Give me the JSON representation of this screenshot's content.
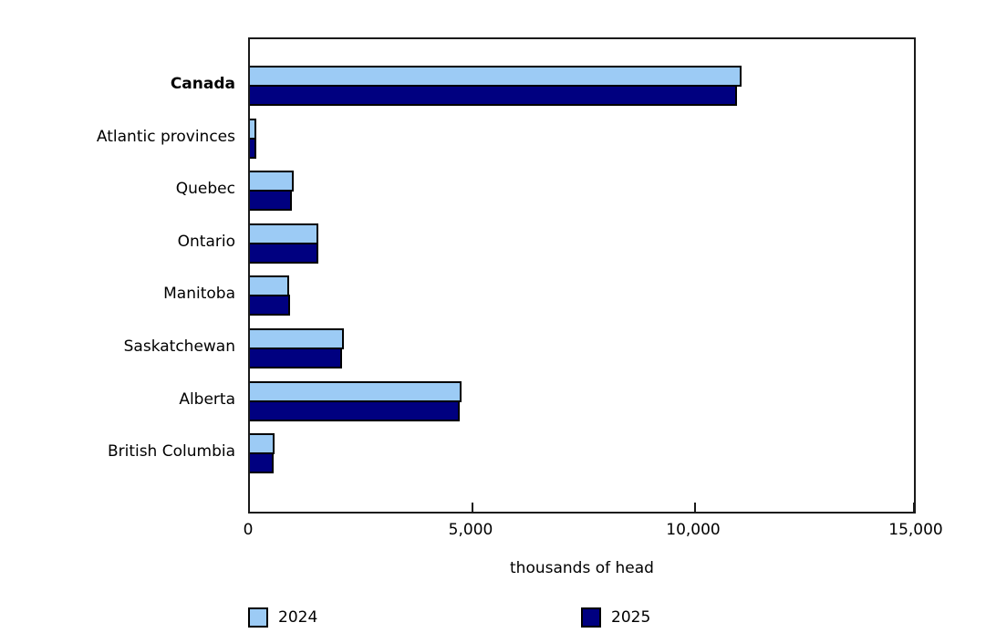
{
  "chart_data": {
    "type": "bar",
    "orientation": "horizontal",
    "title": "",
    "xlabel": "thousands of head",
    "ylabel": "",
    "xlim": [
      0,
      15000
    ],
    "xticks": [
      0,
      5000,
      10000,
      15000
    ],
    "xtick_labels": [
      "0",
      "5,000",
      "10,000",
      "15,000"
    ],
    "grid": false,
    "legend_position": "bottom",
    "categories": [
      "Canada",
      "Atlantic provinces",
      "Quebec",
      "Ontario",
      "Manitoba",
      "Saskatchewan",
      "Alberta",
      "British Columbia"
    ],
    "emphasized_categories": [
      "Canada"
    ],
    "series": [
      {
        "name": "2024",
        "color": "#9CCBF5",
        "values": [
          11050,
          150,
          980,
          1530,
          880,
          2110,
          4755,
          545
        ]
      },
      {
        "name": "2025",
        "color": "#000080",
        "values": [
          10950,
          140,
          950,
          1545,
          900,
          2075,
          4715,
          525
        ]
      }
    ]
  },
  "axis": {
    "title": "thousands of head"
  },
  "legend": {
    "items": [
      {
        "label": "2024",
        "color": "#9CCBF5"
      },
      {
        "label": "2025",
        "color": "#000080"
      }
    ]
  }
}
